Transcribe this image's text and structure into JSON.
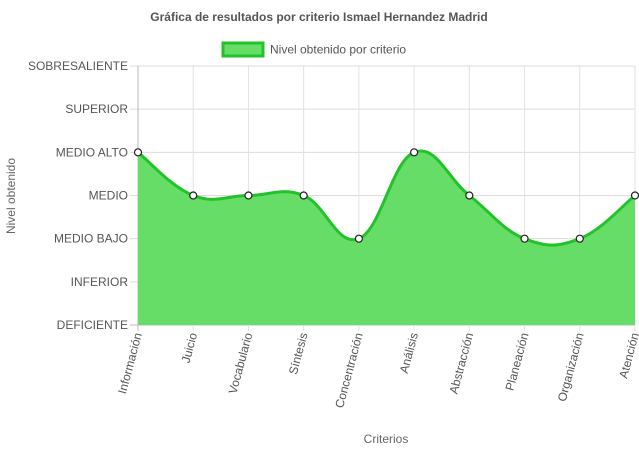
{
  "chart_data": {
    "type": "area",
    "title": "Gráfica de resultados por criterio Ismael Hernandez Madrid",
    "xlabel": "Criterios",
    "ylabel": "Nivel obtenido",
    "legend_position": "top",
    "grid": true,
    "categories": [
      "Información",
      "Juicio",
      "Vocabulario",
      "Síntesis",
      "Concentración",
      "Análisis",
      "Abstracción",
      "Planeación",
      "Organización",
      "Atención"
    ],
    "y_tick_labels": [
      "DEFICIENTE",
      "INFERIOR",
      "MEDIO BAJO",
      "MEDIO",
      "MEDIO ALTO",
      "SUPERIOR",
      "SOBRESALIENTE"
    ],
    "ylim": [
      0,
      6
    ],
    "series": [
      {
        "name": "Nivel obtenido por criterio",
        "values": [
          4,
          3,
          3,
          3,
          2,
          4,
          3,
          2,
          2,
          3
        ],
        "color": "#22c32a",
        "fill": "#66dd66"
      }
    ]
  }
}
